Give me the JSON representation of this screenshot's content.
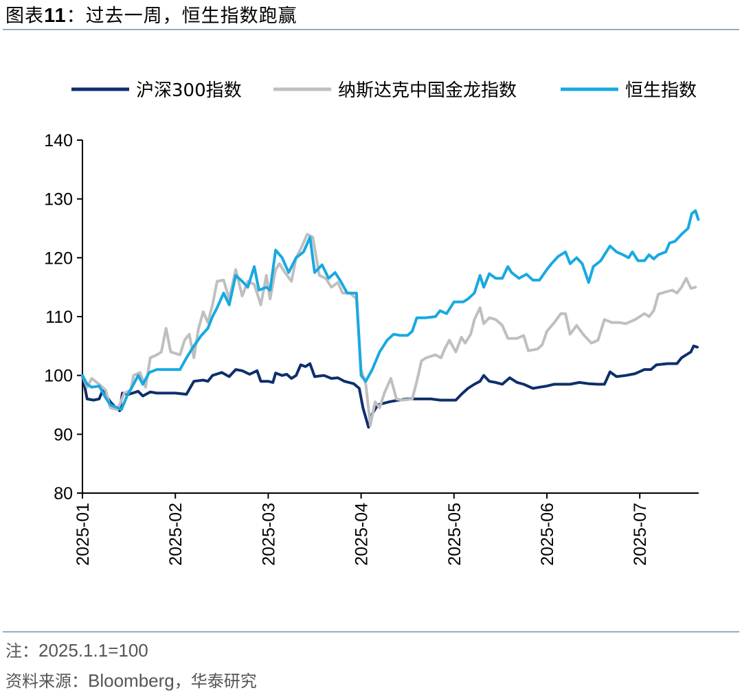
{
  "header": {
    "title_prefix": "图表",
    "title_number": "11",
    "title_sep": "：",
    "title_text": "过去一周，恒生指数跑赢"
  },
  "footer": {
    "note_prefix": "注：",
    "note_text": "2025.1.1=100",
    "source_prefix": "资料来源：",
    "source_latin": "Bloomberg",
    "source_suffix": "，华泰研究"
  },
  "colors": {
    "csi300": "#0d2f6b",
    "nasdaq_golden_dragon": "#bfbfbf",
    "hang_seng": "#18a9e0",
    "axis": "#000000"
  },
  "chart_data": {
    "type": "line",
    "title": "过去一周，恒生指数跑赢",
    "xlabel": "",
    "ylabel": "",
    "ylim": [
      80,
      140
    ],
    "yticks": [
      80,
      90,
      100,
      110,
      120,
      130,
      140
    ],
    "xlim_months": [
      0,
      6.62
    ],
    "xticks": [
      {
        "label": "2025-01",
        "m": 0
      },
      {
        "label": "2025-02",
        "m": 1
      },
      {
        "label": "2025-03",
        "m": 2
      },
      {
        "label": "2025-04",
        "m": 3
      },
      {
        "label": "2025-05",
        "m": 4
      },
      {
        "label": "2025-06",
        "m": 5
      },
      {
        "label": "2025-07",
        "m": 6
      }
    ],
    "grid": false,
    "legend_position": "top",
    "series": [
      {
        "name": "沪深300指数",
        "color_key": "csi300",
        "width": 4,
        "points": [
          [
            0,
            100
          ],
          [
            0.05,
            96
          ],
          [
            0.12,
            95.8
          ],
          [
            0.18,
            96
          ],
          [
            0.22,
            97.5
          ],
          [
            0.3,
            95.5
          ],
          [
            0.36,
            94.5
          ],
          [
            0.4,
            94
          ],
          [
            0.43,
            97
          ],
          [
            0.5,
            96.8
          ],
          [
            0.6,
            97.3
          ],
          [
            0.65,
            96.5
          ],
          [
            0.73,
            97.2
          ],
          [
            0.8,
            97
          ],
          [
            0.9,
            97
          ],
          [
            1.0,
            97
          ],
          [
            1.12,
            96.8
          ],
          [
            1.2,
            99
          ],
          [
            1.3,
            99.2
          ],
          [
            1.35,
            99
          ],
          [
            1.4,
            100
          ],
          [
            1.5,
            100.5
          ],
          [
            1.58,
            99.8
          ],
          [
            1.65,
            101
          ],
          [
            1.72,
            100.8
          ],
          [
            1.8,
            100.2
          ],
          [
            1.88,
            100.8
          ],
          [
            1.92,
            99
          ],
          [
            2.0,
            99
          ],
          [
            2.05,
            98.8
          ],
          [
            2.08,
            100.4
          ],
          [
            2.15,
            100
          ],
          [
            2.2,
            100.2
          ],
          [
            2.25,
            99.5
          ],
          [
            2.3,
            100
          ],
          [
            2.35,
            101.8
          ],
          [
            2.4,
            101.5
          ],
          [
            2.45,
            102
          ],
          [
            2.5,
            99.8
          ],
          [
            2.6,
            100
          ],
          [
            2.68,
            99.5
          ],
          [
            2.75,
            99.6
          ],
          [
            2.82,
            99
          ],
          [
            2.92,
            98.6
          ],
          [
            2.98,
            97.8
          ],
          [
            3.02,
            94.5
          ],
          [
            3.08,
            91.2
          ],
          [
            3.12,
            93.5
          ],
          [
            3.18,
            95
          ],
          [
            3.3,
            95.5
          ],
          [
            3.4,
            95.8
          ],
          [
            3.5,
            96
          ],
          [
            3.65,
            96
          ],
          [
            3.75,
            96
          ],
          [
            3.85,
            95.8
          ],
          [
            3.95,
            95.8
          ],
          [
            4.02,
            95.8
          ],
          [
            4.08,
            96.8
          ],
          [
            4.15,
            97.8
          ],
          [
            4.22,
            98.5
          ],
          [
            4.28,
            99
          ],
          [
            4.32,
            100
          ],
          [
            4.38,
            99
          ],
          [
            4.45,
            98.8
          ],
          [
            4.52,
            98.5
          ],
          [
            4.6,
            99.6
          ],
          [
            4.68,
            98.8
          ],
          [
            4.75,
            98.5
          ],
          [
            4.85,
            97.8
          ],
          [
            4.92,
            98
          ],
          [
            5.0,
            98.2
          ],
          [
            5.08,
            98.5
          ],
          [
            5.15,
            98.5
          ],
          [
            5.25,
            98.5
          ],
          [
            5.35,
            98.8
          ],
          [
            5.45,
            98.6
          ],
          [
            5.55,
            98.5
          ],
          [
            5.62,
            98.5
          ],
          [
            5.68,
            100.6
          ],
          [
            5.75,
            99.8
          ],
          [
            5.85,
            100
          ],
          [
            5.95,
            100.3
          ],
          [
            6.05,
            101
          ],
          [
            6.12,
            101
          ],
          [
            6.18,
            101.8
          ],
          [
            6.3,
            102
          ],
          [
            6.4,
            102
          ],
          [
            6.45,
            103
          ],
          [
            6.5,
            103.5
          ],
          [
            6.55,
            104
          ],
          [
            6.58,
            105
          ],
          [
            6.62,
            104.8
          ]
        ]
      },
      {
        "name": "纳斯达克中国金龙指数",
        "color_key": "nasdaq_golden_dragon",
        "width": 4,
        "points": [
          [
            0,
            100
          ],
          [
            0.05,
            98
          ],
          [
            0.1,
            99.5
          ],
          [
            0.18,
            98.5
          ],
          [
            0.25,
            97.5
          ],
          [
            0.3,
            94.5
          ],
          [
            0.38,
            94.2
          ],
          [
            0.45,
            97
          ],
          [
            0.52,
            97.5
          ],
          [
            0.55,
            100
          ],
          [
            0.62,
            100.5
          ],
          [
            0.68,
            98
          ],
          [
            0.73,
            103
          ],
          [
            0.8,
            103.5
          ],
          [
            0.85,
            104
          ],
          [
            0.9,
            108
          ],
          [
            0.95,
            104
          ],
          [
            1.05,
            103.5
          ],
          [
            1.1,
            106
          ],
          [
            1.15,
            107
          ],
          [
            1.2,
            103
          ],
          [
            1.25,
            108
          ],
          [
            1.3,
            110.8
          ],
          [
            1.35,
            109
          ],
          [
            1.4,
            112
          ],
          [
            1.45,
            116
          ],
          [
            1.52,
            116.2
          ],
          [
            1.58,
            113
          ],
          [
            1.65,
            118
          ],
          [
            1.72,
            113.5
          ],
          [
            1.78,
            116
          ],
          [
            1.85,
            115.5
          ],
          [
            1.92,
            112
          ],
          [
            1.98,
            117
          ],
          [
            2.02,
            113
          ],
          [
            2.08,
            118
          ],
          [
            2.12,
            119
          ],
          [
            2.18,
            117.5
          ],
          [
            2.25,
            116
          ],
          [
            2.3,
            120
          ],
          [
            2.35,
            121.5
          ],
          [
            2.42,
            124
          ],
          [
            2.48,
            123.5
          ],
          [
            2.55,
            117
          ],
          [
            2.62,
            116.5
          ],
          [
            2.68,
            115
          ],
          [
            2.75,
            115.8
          ],
          [
            2.8,
            114
          ],
          [
            2.88,
            114
          ],
          [
            2.95,
            113
          ],
          [
            3.0,
            101
          ],
          [
            3.05,
            98.5
          ],
          [
            3.1,
            91.5
          ],
          [
            3.15,
            95.5
          ],
          [
            3.2,
            94.5
          ],
          [
            3.25,
            97
          ],
          [
            3.32,
            99.5
          ],
          [
            3.38,
            96
          ],
          [
            3.45,
            95.8
          ],
          [
            3.55,
            96
          ],
          [
            3.6,
            99
          ],
          [
            3.65,
            102.5
          ],
          [
            3.7,
            103
          ],
          [
            3.8,
            103.5
          ],
          [
            3.86,
            103
          ],
          [
            3.9,
            104.5
          ],
          [
            3.95,
            106
          ],
          [
            4.02,
            104
          ],
          [
            4.08,
            106.5
          ],
          [
            4.12,
            105.5
          ],
          [
            4.18,
            107
          ],
          [
            4.22,
            109.5
          ],
          [
            4.28,
            111.5
          ],
          [
            4.32,
            108.8
          ],
          [
            4.38,
            109.8
          ],
          [
            4.45,
            109.5
          ],
          [
            4.52,
            108.5
          ],
          [
            4.58,
            106.3
          ],
          [
            4.68,
            106.3
          ],
          [
            4.75,
            106.8
          ],
          [
            4.8,
            104.2
          ],
          [
            4.9,
            104.5
          ],
          [
            4.95,
            105.2
          ],
          [
            5.0,
            107.5
          ],
          [
            5.08,
            109
          ],
          [
            5.15,
            110.5
          ],
          [
            5.2,
            110.5
          ],
          [
            5.25,
            107
          ],
          [
            5.32,
            108.5
          ],
          [
            5.4,
            106.8
          ],
          [
            5.48,
            105.5
          ],
          [
            5.55,
            106
          ],
          [
            5.62,
            109.5
          ],
          [
            5.7,
            109
          ],
          [
            5.78,
            109
          ],
          [
            5.85,
            108.8
          ],
          [
            5.95,
            109.5
          ],
          [
            6.05,
            110.5
          ],
          [
            6.1,
            110
          ],
          [
            6.15,
            111
          ],
          [
            6.2,
            113.8
          ],
          [
            6.28,
            114.2
          ],
          [
            6.35,
            114.5
          ],
          [
            6.4,
            114
          ],
          [
            6.45,
            115
          ],
          [
            6.5,
            116.5
          ],
          [
            6.55,
            114.8
          ],
          [
            6.6,
            115
          ]
        ]
      },
      {
        "name": "恒生指数",
        "color_key": "hang_seng",
        "width": 4,
        "points": [
          [
            0,
            100
          ],
          [
            0.05,
            98.5
          ],
          [
            0.1,
            98
          ],
          [
            0.18,
            98.2
          ],
          [
            0.25,
            96.2
          ],
          [
            0.3,
            95
          ],
          [
            0.38,
            94.5
          ],
          [
            0.42,
            94.2
          ],
          [
            0.48,
            96.5
          ],
          [
            0.55,
            98.5
          ],
          [
            0.6,
            100
          ],
          [
            0.65,
            98.5
          ],
          [
            0.72,
            100.5
          ],
          [
            0.8,
            101
          ],
          [
            0.9,
            101
          ],
          [
            1.0,
            101
          ],
          [
            1.05,
            101
          ],
          [
            1.12,
            103
          ],
          [
            1.2,
            105
          ],
          [
            1.28,
            106.8
          ],
          [
            1.35,
            108
          ],
          [
            1.4,
            110
          ],
          [
            1.45,
            111.5
          ],
          [
            1.52,
            114
          ],
          [
            1.58,
            112
          ],
          [
            1.65,
            117
          ],
          [
            1.72,
            116
          ],
          [
            1.78,
            115
          ],
          [
            1.85,
            118.5
          ],
          [
            1.9,
            114.5
          ],
          [
            1.98,
            115
          ],
          [
            2.02,
            114.5
          ],
          [
            2.08,
            121.3
          ],
          [
            2.15,
            120
          ],
          [
            2.22,
            117.5
          ],
          [
            2.3,
            120
          ],
          [
            2.38,
            121
          ],
          [
            2.45,
            123.5
          ],
          [
            2.5,
            117.5
          ],
          [
            2.58,
            118.8
          ],
          [
            2.65,
            116.5
          ],
          [
            2.72,
            117.5
          ],
          [
            2.78,
            116
          ],
          [
            2.85,
            114
          ],
          [
            2.95,
            114
          ],
          [
            3.0,
            100
          ],
          [
            3.05,
            99
          ],
          [
            3.12,
            101
          ],
          [
            3.2,
            104
          ],
          [
            3.28,
            106
          ],
          [
            3.35,
            107
          ],
          [
            3.42,
            106.8
          ],
          [
            3.5,
            106.8
          ],
          [
            3.55,
            107.5
          ],
          [
            3.6,
            109.8
          ],
          [
            3.7,
            109.8
          ],
          [
            3.8,
            110
          ],
          [
            3.85,
            111
          ],
          [
            3.92,
            110.5
          ],
          [
            4.0,
            112.5
          ],
          [
            4.1,
            112.5
          ],
          [
            4.15,
            113
          ],
          [
            4.22,
            114
          ],
          [
            4.28,
            117
          ],
          [
            4.32,
            115
          ],
          [
            4.38,
            117.3
          ],
          [
            4.45,
            116.5
          ],
          [
            4.52,
            116.5
          ],
          [
            4.58,
            118.5
          ],
          [
            4.62,
            117.5
          ],
          [
            4.7,
            116.5
          ],
          [
            4.78,
            117.2
          ],
          [
            4.85,
            116.2
          ],
          [
            4.92,
            116.2
          ],
          [
            5.0,
            118
          ],
          [
            5.05,
            119
          ],
          [
            5.12,
            120.2
          ],
          [
            5.2,
            121
          ],
          [
            5.25,
            119
          ],
          [
            5.32,
            120
          ],
          [
            5.38,
            119
          ],
          [
            5.45,
            115.8
          ],
          [
            5.5,
            118.5
          ],
          [
            5.58,
            119.5
          ],
          [
            5.62,
            120.5
          ],
          [
            5.68,
            122
          ],
          [
            5.75,
            121
          ],
          [
            5.82,
            120.5
          ],
          [
            5.88,
            120
          ],
          [
            5.92,
            121
          ],
          [
            5.98,
            119.5
          ],
          [
            6.05,
            119.5
          ],
          [
            6.1,
            120.5
          ],
          [
            6.15,
            119.8
          ],
          [
            6.2,
            120.5
          ],
          [
            6.28,
            121
          ],
          [
            6.32,
            122.5
          ],
          [
            6.38,
            122.8
          ],
          [
            6.45,
            124
          ],
          [
            6.52,
            125
          ],
          [
            6.56,
            127.5
          ],
          [
            6.6,
            128
          ],
          [
            6.63,
            126.5
          ]
        ]
      }
    ]
  }
}
